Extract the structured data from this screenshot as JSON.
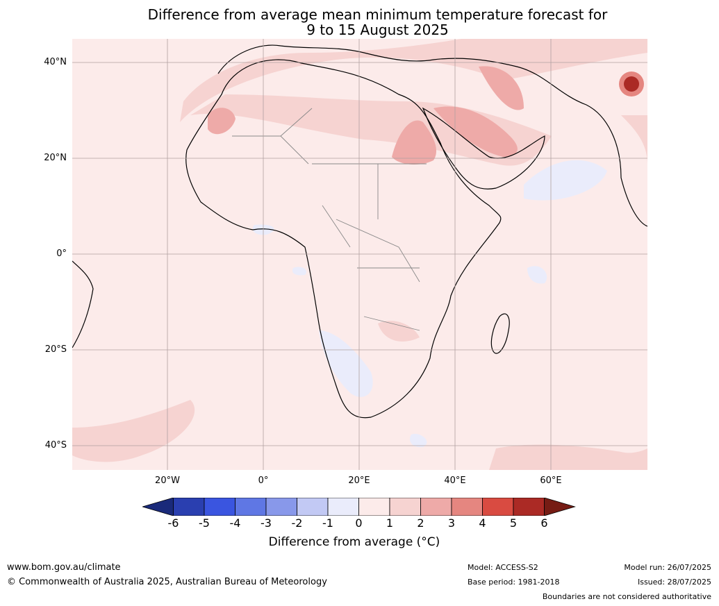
{
  "title": {
    "line1": "Difference from average mean minimum temperature forecast for",
    "line2": "9 to 15 August 2025"
  },
  "map": {
    "latitude_labels": [
      "40°N",
      "20°N",
      "0°",
      "20°S",
      "40°S"
    ],
    "longitude_labels": [
      "20°W",
      "0°",
      "20°E",
      "40°E",
      "60°E"
    ]
  },
  "colorbar": {
    "ticks": [
      "-6",
      "-5",
      "-4",
      "-3",
      "-2",
      "-1",
      "0",
      "1",
      "2",
      "3",
      "4",
      "5",
      "6"
    ],
    "colors": [
      "#1a2a7a",
      "#2a3fb0",
      "#3a55e0",
      "#5f77e4",
      "#8898ea",
      "#c2c9f4",
      "#eaecfb",
      "#fcebea",
      "#f6d3d1",
      "#eeaaa8",
      "#e58680",
      "#d94b41",
      "#ab2a25",
      "#761c14"
    ],
    "label": "Difference from average (°C)"
  },
  "footer": {
    "website": "www.bom.gov.au/climate",
    "copyright": "© Commonwealth of Australia 2025, Australian Bureau of Meteorology",
    "model": "Model: ACCESS-S2",
    "base_period": "Base period: 1981-2018",
    "model_run": "Model run: 26/07/2025",
    "issued": "Issued: 28/07/2025",
    "disclaimer": "Boundaries are not considered authoritative"
  }
}
